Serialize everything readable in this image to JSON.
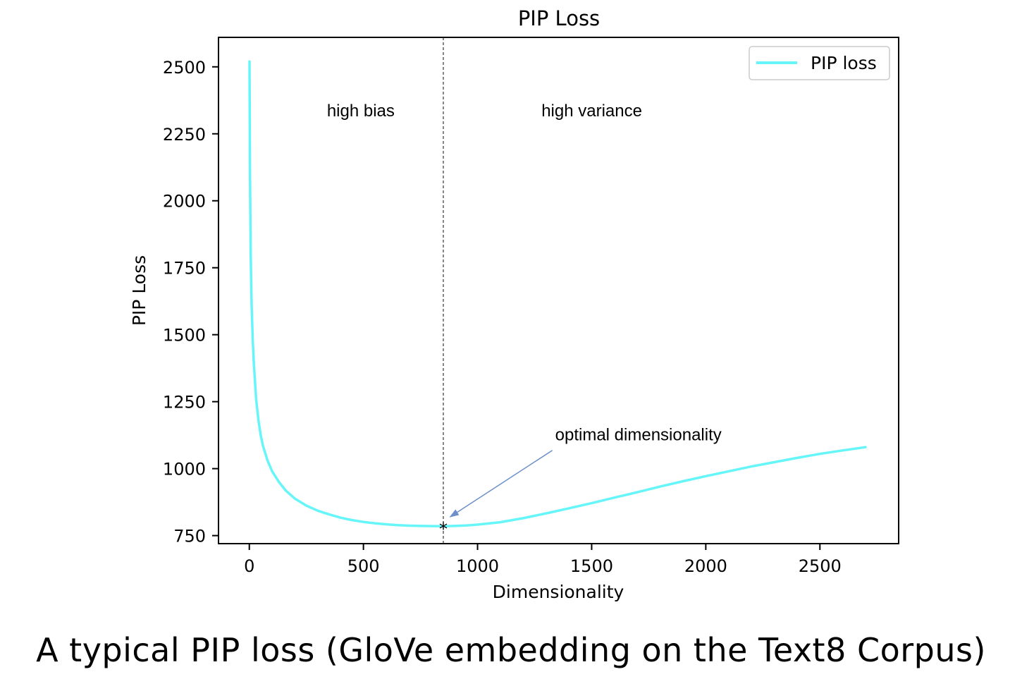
{
  "caption": "A typical PIP loss (GloVe embedding on the Text8 Corpus)",
  "chart_data": {
    "type": "line",
    "title": "PIP Loss",
    "xlabel": "Dimensionality",
    "ylabel": "PIP Loss",
    "xlim": [
      -135,
      2845
    ],
    "ylim": [
      720,
      2610
    ],
    "xticks": [
      0,
      500,
      1000,
      1500,
      2000,
      2500
    ],
    "yticks": [
      750,
      1000,
      1250,
      1500,
      1750,
      2000,
      2250,
      2500
    ],
    "grid": false,
    "legend": {
      "position": "top-right",
      "entries": [
        "PIP loss"
      ]
    },
    "series": [
      {
        "name": "PIP loss",
        "color": "#66f5f9",
        "x": [
          1,
          3,
          6,
          10,
          15,
          20,
          30,
          40,
          50,
          60,
          80,
          100,
          130,
          160,
          200,
          250,
          300,
          350,
          400,
          450,
          500,
          550,
          600,
          650,
          700,
          750,
          800,
          850,
          900,
          950,
          1000,
          1100,
          1200,
          1300,
          1400,
          1500,
          1600,
          1700,
          1800,
          1900,
          2000,
          2100,
          2200,
          2300,
          2400,
          2500,
          2600,
          2700
        ],
        "values": [
          2520,
          2100,
          1800,
          1610,
          1480,
          1390,
          1260,
          1180,
          1125,
          1085,
          1030,
          990,
          950,
          918,
          888,
          862,
          843,
          829,
          817,
          808,
          801,
          796,
          792,
          789,
          787,
          786,
          785.5,
          785,
          786,
          788,
          791,
          800,
          815,
          833,
          852,
          871,
          892,
          912,
          933,
          953,
          972,
          990,
          1008,
          1024,
          1040,
          1055,
          1068,
          1080
        ]
      }
    ],
    "marker": {
      "x": 850,
      "y": 785,
      "symbol": "*"
    },
    "vline": {
      "x": 850,
      "style": "dashed"
    },
    "annotations": [
      {
        "text": "high bias",
        "x": 340,
        "y": 2315
      },
      {
        "text": "high variance",
        "x": 1280,
        "y": 2315
      },
      {
        "text": "optimal dimensionality",
        "x": 1340,
        "y": 1105,
        "arrow_to": {
          "x": 880,
          "y": 820
        }
      }
    ]
  }
}
